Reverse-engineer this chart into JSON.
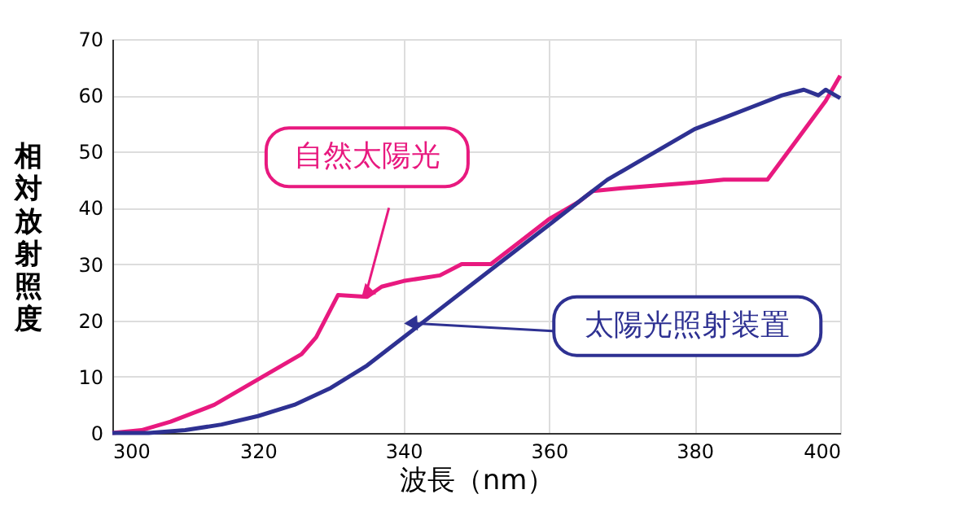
{
  "chart_data": {
    "type": "line",
    "xlabel": "波長（nm）",
    "ylabel": "相対放射照度",
    "xlim": [
      300,
      400
    ],
    "xticks": [
      300,
      320,
      340,
      360,
      380,
      400
    ],
    "ylim": [
      0,
      70
    ],
    "yticks": [
      0,
      10,
      20,
      30,
      40,
      50,
      60,
      70
    ],
    "grid": true,
    "legend": false,
    "marker": "none",
    "line_style": "solid",
    "series": [
      {
        "name": "自然太陽光",
        "color": "#e8197f",
        "x": [
          300,
          304,
          308,
          312,
          314,
          318,
          322,
          326,
          328,
          331,
          335,
          337,
          340,
          345,
          348,
          352,
          356,
          360,
          364,
          366,
          370,
          375,
          380,
          384,
          390,
          394,
          398,
          400
        ],
        "values": [
          0,
          0.5,
          2,
          4,
          5,
          8,
          11,
          14,
          17,
          24.5,
          24.2,
          26,
          27,
          28,
          30,
          30,
          34,
          38,
          41,
          43,
          43.5,
          44,
          44.5,
          45,
          45,
          52,
          59,
          63.5
        ]
      },
      {
        "name": "太陽光照射装置",
        "color": "#2e3192",
        "x": [
          300,
          305,
          310,
          315,
          320,
          325,
          330,
          335,
          340,
          345,
          350,
          355,
          360,
          365,
          368,
          372,
          376,
          380,
          384,
          388,
          392,
          395,
          397,
          398,
          400
        ],
        "values": [
          0,
          0,
          0.5,
          1.5,
          3,
          5,
          8,
          12,
          17,
          22,
          27,
          32,
          37,
          42,
          45,
          48,
          51,
          54,
          56,
          58,
          60,
          61,
          60,
          61,
          59.5
        ]
      }
    ]
  }
}
